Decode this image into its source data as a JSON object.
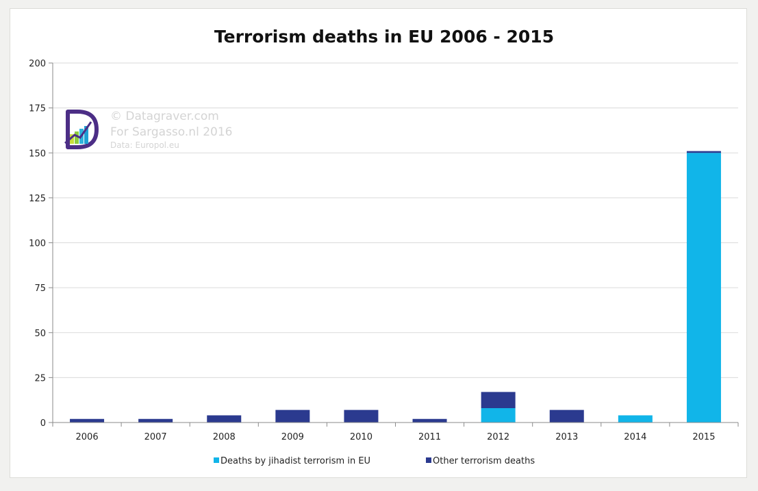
{
  "chart_data": {
    "type": "bar",
    "stacked": true,
    "title": "Terrorism deaths in EU  2006 - 2015",
    "xlabel": "",
    "ylabel": "",
    "categories": [
      "2006",
      "2007",
      "2008",
      "2009",
      "2010",
      "2011",
      "2012",
      "2013",
      "2014",
      "2015"
    ],
    "series": [
      {
        "name": "Deaths by jihadist terrorism in EU",
        "color": "#11b5e9",
        "values": [
          0,
          0,
          0,
          0,
          0,
          0,
          8,
          0,
          4,
          150
        ]
      },
      {
        "name": "Other terrorism deaths",
        "color": "#2b3a8f",
        "values": [
          2,
          2,
          4,
          7,
          7,
          2,
          9,
          7,
          0,
          1
        ]
      }
    ],
    "ylim": [
      0,
      200
    ],
    "yticks": [
      0,
      25,
      50,
      75,
      100,
      125,
      150,
      175,
      200
    ],
    "grid": true,
    "legend_position": "bottom"
  },
  "watermark": {
    "lines": [
      "© Datagraver.com",
      "For Sargasso.nl 2016",
      "Data: Europol.eu"
    ],
    "logo_icon": "datagraver-logo-icon"
  }
}
